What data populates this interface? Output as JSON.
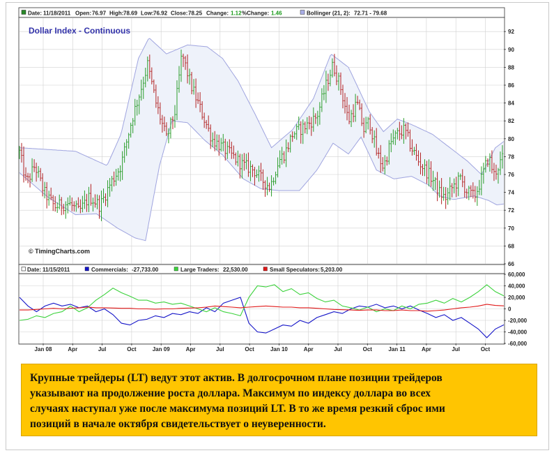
{
  "chart_data": [
    {
      "type": "ohlc",
      "title": "Dollar Index - Continuous",
      "copyright": "© TimingCharts.com",
      "legend": {
        "date_label": "Date:",
        "date": "11/18/2011",
        "open_label": "Open:",
        "open": "76.97",
        "high_label": "High:",
        "high": "78.69",
        "low_label": "Low:",
        "low": "76.92",
        "close_label": "Close:",
        "close": "78.25",
        "change_label": "Change:",
        "change": "1.12",
        "pct_label": "%Change:",
        "pct_change": "1.46",
        "bollinger_label": "Bollinger (21, 2):",
        "bollinger": "72.71 - 79.68"
      },
      "y_ticks": [
        66,
        68,
        70,
        72,
        74,
        76,
        78,
        80,
        82,
        84,
        86,
        88,
        90,
        92
      ],
      "ylim": [
        66,
        93.5
      ],
      "grid": true,
      "colors": {
        "up": "#2a9d2a",
        "down": "#b22222",
        "band_line": "#9fa4df",
        "band_fill": "#eef2fa",
        "title": "#3333aa"
      },
      "price_knots": [
        [
          0,
          78.5
        ],
        [
          10,
          75
        ],
        [
          22,
          77
        ],
        [
          35,
          74
        ],
        [
          50,
          72.4
        ],
        [
          70,
          72.8
        ],
        [
          85,
          71.8
        ],
        [
          100,
          73.5
        ],
        [
          115,
          72.5
        ],
        [
          130,
          75
        ],
        [
          145,
          77
        ],
        [
          160,
          82
        ],
        [
          175,
          86
        ],
        [
          183,
          88.3
        ],
        [
          195,
          84
        ],
        [
          210,
          80
        ],
        [
          222,
          83
        ],
        [
          232,
          89.5
        ],
        [
          245,
          86
        ],
        [
          260,
          83
        ],
        [
          275,
          80
        ],
        [
          290,
          79
        ],
        [
          305,
          78
        ],
        [
          320,
          77
        ],
        [
          335,
          76.5
        ],
        [
          345,
          75.5
        ],
        [
          358,
          74.6
        ],
        [
          370,
          77.5
        ],
        [
          380,
          78.5
        ],
        [
          390,
          80.5
        ],
        [
          400,
          81
        ],
        [
          410,
          81.5
        ],
        [
          425,
          82.5
        ],
        [
          440,
          86.5
        ],
        [
          448,
          88.3
        ],
        [
          458,
          86
        ],
        [
          470,
          82
        ],
        [
          482,
          84
        ],
        [
          492,
          81
        ],
        [
          500,
          82
        ],
        [
          510,
          78.5
        ],
        [
          520,
          76.8
        ],
        [
          530,
          79.5
        ],
        [
          540,
          80.5
        ],
        [
          550,
          81
        ],
        [
          560,
          79
        ],
        [
          570,
          77.5
        ],
        [
          580,
          76.5
        ],
        [
          590,
          75.5
        ],
        [
          600,
          74
        ],
        [
          608,
          73.3
        ],
        [
          618,
          74.5
        ],
        [
          630,
          75.5
        ],
        [
          640,
          74
        ],
        [
          650,
          73.5
        ],
        [
          660,
          75.5
        ],
        [
          670,
          78
        ],
        [
          678,
          76
        ],
        [
          688,
          77.5
        ],
        [
          692,
          78
        ]
      ],
      "band_upper": [
        [
          0,
          79
        ],
        [
          40,
          78.8
        ],
        [
          80,
          78.6
        ],
        [
          125,
          77
        ],
        [
          145,
          80.5
        ],
        [
          170,
          89
        ],
        [
          185,
          91.3
        ],
        [
          210,
          89.5
        ],
        [
          240,
          90.5
        ],
        [
          268,
          90.3
        ],
        [
          290,
          89
        ],
        [
          312,
          86.5
        ],
        [
          335,
          83
        ],
        [
          360,
          79
        ],
        [
          390,
          81
        ],
        [
          420,
          84.5
        ],
        [
          445,
          89.5
        ],
        [
          470,
          88
        ],
        [
          500,
          83
        ],
        [
          520,
          80.8
        ],
        [
          540,
          82.2
        ],
        [
          560,
          81.6
        ],
        [
          590,
          80.5
        ],
        [
          615,
          79
        ],
        [
          640,
          77.5
        ],
        [
          660,
          76
        ],
        [
          680,
          79
        ],
        [
          692,
          79.7
        ]
      ],
      "band_lower": [
        [
          0,
          76.2
        ],
        [
          40,
          73.5
        ],
        [
          80,
          71.5
        ],
        [
          110,
          71.6
        ],
        [
          140,
          70
        ],
        [
          165,
          68.9
        ],
        [
          180,
          68.6
        ],
        [
          200,
          77
        ],
        [
          218,
          82
        ],
        [
          240,
          81.8
        ],
        [
          265,
          79.8
        ],
        [
          290,
          78.2
        ],
        [
          320,
          75.5
        ],
        [
          345,
          74.4
        ],
        [
          370,
          74.2
        ],
        [
          400,
          74.2
        ],
        [
          425,
          76.5
        ],
        [
          448,
          79.5
        ],
        [
          470,
          78.3
        ],
        [
          488,
          80.2
        ],
        [
          510,
          76.5
        ],
        [
          535,
          75.5
        ],
        [
          560,
          75.8
        ],
        [
          585,
          74.8
        ],
        [
          600,
          73.6
        ],
        [
          620,
          73.2
        ],
        [
          650,
          73.6
        ],
        [
          670,
          73.1
        ],
        [
          682,
          72.6
        ],
        [
          692,
          72.7
        ]
      ]
    },
    {
      "type": "line",
      "legend": {
        "date_label": "Date:",
        "date": "11/15/2011",
        "commercials_label": "Commercials:",
        "commercials": "-27,733.00",
        "large_label": "Large Traders:",
        "large_traders": "22,530.00",
        "small_label": "Small Speculators:",
        "small_speculators": "5,203.00"
      },
      "y_ticks": [
        -60000,
        -40000,
        -20000,
        0,
        20000,
        40000,
        60000
      ],
      "y_tick_labels": [
        "-60,000",
        "-40,000",
        "-20,000",
        "0",
        "20,000",
        "40,000",
        "60,000"
      ],
      "ylim": [
        -60000,
        60000
      ],
      "x_ticks": [
        "Jan 08",
        "Apr",
        "Jul",
        "Oct",
        "Jan 09",
        "Apr",
        "Jul",
        "Oct",
        "Jan 10",
        "Apr",
        "Jul",
        "Oct",
        "Jan 11",
        "Apr",
        "Jul",
        "Oct"
      ],
      "series": [
        {
          "name": "Commercials",
          "color": "#1414c8",
          "values": [
            20000,
            5000,
            -5000,
            5000,
            10000,
            5000,
            8000,
            2000,
            5000,
            -5000,
            0,
            -10000,
            -25000,
            -28000,
            -20000,
            -18000,
            -12000,
            -15000,
            -8000,
            -10000,
            -5000,
            -8000,
            2000,
            -5000,
            10000,
            15000,
            20000,
            -25000,
            -40000,
            -42000,
            -35000,
            -28000,
            -30000,
            -20000,
            -25000,
            -15000,
            -10000,
            -5000,
            -8000,
            0,
            5000,
            3000,
            8000,
            2000,
            5000,
            0,
            5000,
            -2000,
            -8000,
            -15000,
            -10000,
            -20000,
            -15000,
            -25000,
            -35000,
            -50000,
            -35000,
            -27733
          ]
        },
        {
          "name": "Large Traders",
          "color": "#3cd23c",
          "values": [
            -20000,
            -18000,
            -12000,
            -15000,
            -8000,
            -5000,
            5000,
            -5000,
            2000,
            15000,
            25000,
            36000,
            28000,
            22000,
            15000,
            15000,
            10000,
            12000,
            8000,
            10000,
            5000,
            0,
            -5000,
            2000,
            -5000,
            -8000,
            -12000,
            20000,
            40000,
            38000,
            42000,
            30000,
            35000,
            25000,
            28000,
            18000,
            12000,
            15000,
            5000,
            2000,
            -2000,
            3000,
            -5000,
            0,
            -3000,
            5000,
            0,
            8000,
            10000,
            15000,
            10000,
            18000,
            12000,
            20000,
            30000,
            42000,
            30000,
            22530
          ]
        },
        {
          "name": "Small Speculators",
          "color": "#e01818",
          "values": [
            -2000,
            -2000,
            -1000,
            0,
            1000,
            0,
            1000,
            2000,
            3000,
            2000,
            2000,
            1500,
            1000,
            1000,
            0,
            0,
            -500,
            0,
            0,
            1000,
            1500,
            2000,
            3000,
            5000,
            4000,
            3000,
            2000,
            3000,
            4000,
            5000,
            4000,
            3000,
            3000,
            2000,
            2000,
            1000,
            0,
            -1000,
            -1500,
            -2000,
            -2500,
            -2000,
            -2000,
            -3000,
            -3000,
            -2000,
            -3000,
            -3000,
            -4000,
            -3000,
            -2000,
            0,
            2000,
            3000,
            5000,
            8000,
            6000,
            5203
          ]
        }
      ]
    }
  ],
  "caption": {
    "lines": [
      "Крупные трейдеры (LT) ведут этот актив. В долгосрочном плане позиции трейдеров",
      "указывают на продолжение роста доллара. Максимум по индексу доллара во всех",
      "случаях наступал уже после максимума позиций LT. В то же время резкий сброс ими",
      "позиций в начале октября свидетельствует о неуверенности."
    ]
  }
}
